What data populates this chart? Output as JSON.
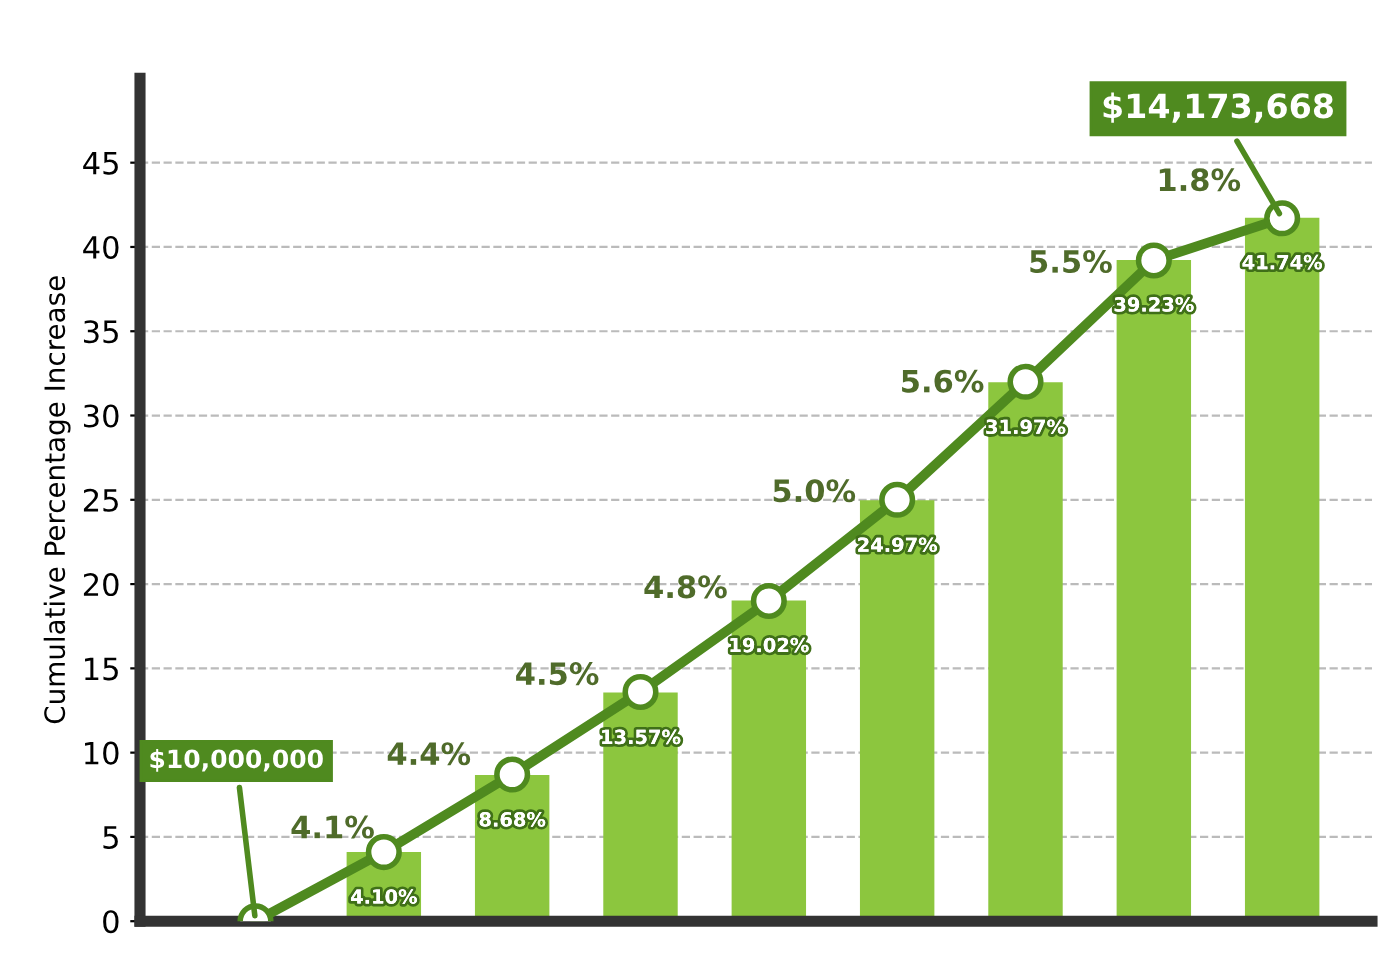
{
  "chart_data": {
    "type": "bar",
    "ylabel": "Cumulative Percentage Increase",
    "categories": [
      null,
      null,
      null,
      null,
      null,
      null,
      null,
      null,
      null
    ],
    "series": [
      {
        "color": "#8cc63e",
        "values": [
          null,
          4.1,
          8.68,
          13.57,
          19.02,
          24.97,
          31.97,
          39.23,
          41.74
        ],
        "value_labels": [
          null,
          "4.10%",
          "8.68%",
          "13.57%",
          "19.02%",
          "24.97%",
          "31.97%",
          "39.23%",
          "41.74%"
        ]
      },
      {
        "type": "line",
        "color": "#4f8a1f",
        "values": [
          0,
          4.1,
          8.7,
          13.6,
          19.0,
          25.0,
          32.0,
          39.2,
          41.7
        ],
        "marker": "circle",
        "line_style": "solid"
      }
    ],
    "annotations": [
      "4.1%",
      "4.4%",
      "4.5%",
      "4.8%",
      "5.0%",
      "5.6%",
      "5.5%",
      "1.8%",
      "$10,000,000",
      "$14,173,668"
    ],
    "ylim": [
      0,
      50
    ],
    "yticks": [
      0,
      5,
      10,
      15,
      20,
      25,
      30,
      35,
      40,
      45
    ],
    "grid": "y",
    "legend": false,
    "tick_labels": "y"
  }
}
